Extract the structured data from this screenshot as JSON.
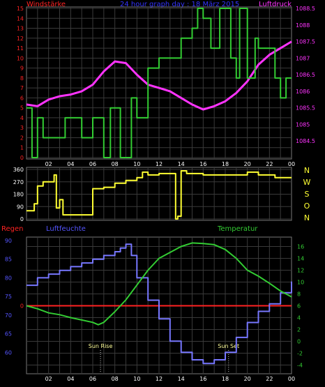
{
  "header": {
    "title_left": "Windstärke",
    "title_center": "24 hour graph day : 18 März 2015",
    "title_right": "Luftdruck"
  },
  "colors": {
    "background": "#000000",
    "grid": "#3a3a3a",
    "wind_speed": "#33cc33",
    "pressure": "#ff33ff",
    "wind_direction": "#ffff33",
    "humidity": "#7777ff",
    "temperature": "#33cc33",
    "rain": "#ff2222",
    "axis_text_white": "#ffffff",
    "axis_text_red": "#ff2222",
    "axis_text_blue": "#5555ff",
    "axis_text_green": "#33cc33",
    "axis_text_magenta": "#ff33ff",
    "compass_text": "#ffff33",
    "title_blue": "#3333ff"
  },
  "x_ticks": [
    "02",
    "04",
    "06",
    "08",
    "10",
    "12",
    "14",
    "16",
    "18",
    "20",
    "22",
    "00"
  ],
  "chart_data": [
    {
      "type": "line",
      "name": "wind-pressure",
      "left_axis": {
        "label": "Windstärke",
        "ylim": [
          0,
          15
        ],
        "ticks": [
          "0",
          "1",
          "2",
          "3",
          "4",
          "5",
          "6",
          "7",
          "8",
          "9",
          "10",
          "11",
          "12",
          "13",
          "14",
          "15"
        ]
      },
      "right_axis": {
        "label": "Luftdruck",
        "ylim": [
          1084.0,
          1088.5
        ],
        "ticks": [
          "1084.5",
          "1085",
          "1085.5",
          "1086",
          "1086.5",
          "1087",
          "1087.5",
          "1088",
          "1088.5"
        ]
      },
      "series": [
        {
          "name": "Windstärke",
          "axis": "left",
          "x": [
            0,
            0.5,
            0.5,
            1,
            1,
            1.5,
            1.5,
            3.5,
            3.5,
            5,
            5,
            6,
            6,
            7,
            7,
            7.6,
            7.6,
            8.5,
            8.5,
            9.5,
            9.5,
            10,
            10,
            11,
            11,
            12,
            12,
            14,
            14,
            15,
            15,
            15.5,
            15.5,
            16,
            16,
            16.7,
            16.7,
            17.5,
            17.5,
            18.5,
            18.5,
            19,
            19,
            19.3,
            19.3,
            20,
            20,
            20.7,
            20.7,
            21,
            21,
            22.5,
            22.5,
            23,
            23,
            23.5,
            23.5,
            24
          ],
          "y": [
            5,
            5,
            0,
            0,
            4,
            4,
            2,
            2,
            4,
            4,
            2,
            2,
            4,
            4,
            0,
            0,
            5,
            5,
            0,
            0,
            6,
            6,
            4,
            4,
            9,
            9,
            10,
            10,
            12,
            12,
            13,
            13,
            15,
            15,
            14,
            14,
            11,
            11,
            15,
            15,
            10,
            10,
            8,
            8,
            15,
            15,
            8,
            8,
            12,
            12,
            11,
            11,
            8,
            8,
            6,
            6,
            8,
            8
          ]
        },
        {
          "name": "Luftdruck",
          "axis": "right",
          "x": [
            0,
            1,
            2,
            3,
            4,
            5,
            6,
            7,
            8,
            9,
            10,
            11,
            12,
            13,
            14,
            15,
            16,
            17,
            18,
            19,
            20,
            21,
            22,
            23,
            24
          ],
          "y": [
            1085.6,
            1085.55,
            1085.75,
            1085.85,
            1085.9,
            1086.0,
            1086.2,
            1086.6,
            1086.9,
            1086.85,
            1086.5,
            1086.2,
            1086.1,
            1086.0,
            1085.8,
            1085.6,
            1085.45,
            1085.55,
            1085.7,
            1085.95,
            1086.3,
            1086.8,
            1087.1,
            1087.3,
            1087.5
          ]
        }
      ]
    },
    {
      "type": "line",
      "name": "wind-direction",
      "left_axis": {
        "ylim": [
          0,
          360
        ],
        "ticks": [
          "0",
          "90",
          "180",
          "270",
          "360"
        ]
      },
      "right_axis": {
        "labels": [
          "N",
          "W",
          "S",
          "O",
          "N"
        ]
      },
      "series": [
        {
          "name": "Windrichtung",
          "x": [
            0,
            0.7,
            0.7,
            1,
            1,
            1.5,
            1.5,
            2.5,
            2.5,
            2.7,
            2.7,
            3,
            3,
            3.3,
            3.3,
            4,
            4,
            5,
            5,
            6,
            6,
            7,
            7,
            8,
            8,
            9,
            9,
            10,
            10,
            10.5,
            10.5,
            11,
            11,
            12,
            12,
            13.5,
            13.5,
            13.7,
            13.7,
            14,
            14,
            14.5,
            14.5,
            16,
            16,
            20,
            20,
            21,
            21,
            22.5,
            22.5,
            24
          ],
          "y": [
            60,
            60,
            110,
            110,
            240,
            240,
            270,
            270,
            320,
            320,
            80,
            80,
            140,
            140,
            30,
            30,
            30,
            30,
            30,
            30,
            220,
            220,
            230,
            230,
            260,
            260,
            280,
            280,
            300,
            300,
            340,
            340,
            320,
            320,
            330,
            330,
            0,
            0,
            20,
            20,
            350,
            350,
            330,
            330,
            320,
            320,
            340,
            340,
            320,
            320,
            300,
            300
          ]
        }
      ]
    },
    {
      "type": "line",
      "name": "humidity-temperature",
      "left_axis": {
        "label": "Luftfeuchte",
        "ylim": [
          55,
          90
        ],
        "ticks": [
          "60",
          "65",
          "70",
          "75",
          "80",
          "85",
          "90"
        ]
      },
      "right_axis": {
        "label": "Temperatur",
        "ylim": [
          -5,
          17
        ],
        "ticks": [
          "-4",
          "-2",
          "0",
          "2",
          "4",
          "6",
          "8",
          "10",
          "12",
          "14",
          "16"
        ]
      },
      "rain_axis": {
        "label": "Regen",
        "ticks": [
          "0"
        ],
        "value": 0
      },
      "annotations": [
        {
          "text": "Sun Rise",
          "x": 6.7
        },
        {
          "text": "Sun Set",
          "x": 18.3
        }
      ],
      "series": [
        {
          "name": "Luftfeuchte",
          "axis": "left",
          "x": [
            0,
            1,
            2,
            3,
            4,
            5,
            6,
            7,
            8,
            8.5,
            9,
            9.5,
            10,
            11,
            12,
            13,
            14,
            15,
            16,
            17,
            18,
            19,
            20,
            21,
            22,
            23,
            24
          ],
          "y": [
            78,
            80,
            81,
            82,
            83,
            84,
            85,
            86,
            87,
            88,
            89,
            86,
            80,
            74,
            69,
            63,
            60,
            58,
            57,
            58,
            60,
            64,
            68,
            71,
            73,
            76,
            79
          ]
        },
        {
          "name": "Temperatur",
          "axis": "right",
          "x": [
            0,
            1,
            2,
            3,
            4,
            5,
            6,
            6.5,
            7,
            8,
            9,
            10,
            11,
            12,
            13,
            14,
            15,
            16,
            17,
            18,
            19,
            20,
            21,
            22,
            23,
            24
          ],
          "y": [
            6,
            5.5,
            4.8,
            4.5,
            4,
            3.6,
            3.2,
            2.8,
            3.2,
            5,
            7,
            9.5,
            12,
            14,
            15,
            16,
            16.6,
            16.5,
            16.3,
            15.5,
            14,
            12,
            11,
            9.8,
            8.5,
            7.5
          ]
        }
      ]
    }
  ]
}
